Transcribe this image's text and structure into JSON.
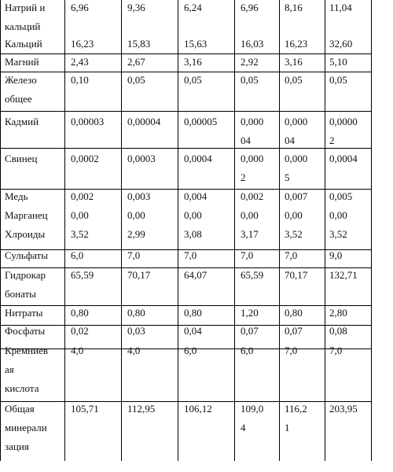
{
  "table": {
    "rows": [
      {
        "key": "sodium",
        "label_lines": [
          "Натрий и",
          "кальций"
        ],
        "cells": [
          [
            "6,96"
          ],
          [
            "9,36"
          ],
          [
            "6,24"
          ],
          [
            "6,96"
          ],
          [
            "8,16"
          ],
          [
            "11,04"
          ]
        ]
      },
      {
        "key": "calcium",
        "label_lines": [
          "Кальций"
        ],
        "cells": [
          [
            "16,23"
          ],
          [
            "15,83"
          ],
          [
            "15,63"
          ],
          [
            "16,03"
          ],
          [
            "16,23"
          ],
          [
            "32,60"
          ]
        ]
      },
      {
        "key": "magnesium",
        "label_lines": [
          "Магний"
        ],
        "cells": [
          [
            "2,43"
          ],
          [
            "2,67"
          ],
          [
            "3,16"
          ],
          [
            "2,92"
          ],
          [
            "3,16"
          ],
          [
            "5,10"
          ]
        ]
      },
      {
        "key": "iron",
        "label_lines": [
          "Железо",
          "общее"
        ],
        "cells": [
          [
            "0,10"
          ],
          [
            "0,05"
          ],
          [
            "0,05"
          ],
          [
            "0,05"
          ],
          [
            "0,05"
          ],
          [
            "0,05"
          ]
        ]
      },
      {
        "key": "cadmium",
        "label_lines": [
          "Кадмий"
        ],
        "cells": [
          [
            "0,00003"
          ],
          [
            "0,00004"
          ],
          [
            "0,00005"
          ],
          [
            "0,000",
            "04"
          ],
          [
            "0,000",
            "04"
          ],
          [
            "0,0000",
            "2"
          ]
        ]
      },
      {
        "key": "lead",
        "label_lines": [
          "Свинец"
        ],
        "cells": [
          [
            "0,0002"
          ],
          [
            "0,0003"
          ],
          [
            "0,0004"
          ],
          [
            "0,000",
            "2"
          ],
          [
            "0,000",
            "5"
          ],
          [
            "0,0004"
          ]
        ]
      },
      {
        "key": "copper",
        "label_lines": [
          "Медь"
        ],
        "cells": [
          [
            "0,002"
          ],
          [
            "0,003"
          ],
          [
            "0,004"
          ],
          [
            "0,002"
          ],
          [
            "0,007"
          ],
          [
            "0,005"
          ]
        ]
      },
      {
        "key": "manganese",
        "label_lines": [
          "Марганец"
        ],
        "cells": [
          [
            "0,00"
          ],
          [
            "0,00"
          ],
          [
            "0,00"
          ],
          [
            "0,00"
          ],
          [
            "0,00"
          ],
          [
            "0,00"
          ]
        ]
      },
      {
        "key": "chlorides",
        "label_lines": [
          "Хлроиды"
        ],
        "cells": [
          [
            "3,52"
          ],
          [
            "2,99"
          ],
          [
            "3,08"
          ],
          [
            "3,17"
          ],
          [
            "3,52"
          ],
          [
            "3,52"
          ]
        ]
      },
      {
        "key": "sulfates",
        "label_lines": [
          "Сульфаты"
        ],
        "cells": [
          [
            "6,0"
          ],
          [
            "7,0"
          ],
          [
            "7,0"
          ],
          [
            "7,0"
          ],
          [
            "7,0"
          ],
          [
            "9,0"
          ]
        ]
      },
      {
        "key": "hydrocarbonates",
        "label_lines": [
          "Гидрокар",
          "бонаты"
        ],
        "cells": [
          [
            "65,59"
          ],
          [
            "70,17"
          ],
          [
            "64,07"
          ],
          [
            "65,59"
          ],
          [
            "70,17"
          ],
          [
            "132,71"
          ]
        ]
      },
      {
        "key": "nitrates",
        "label_lines": [
          "Нитраты"
        ],
        "cells": [
          [
            "0,80"
          ],
          [
            "0,80"
          ],
          [
            "0,80"
          ],
          [
            "1,20"
          ],
          [
            "0,80"
          ],
          [
            "2,80"
          ]
        ]
      },
      {
        "key": "phosphates",
        "label_lines": [
          "Фосфаты"
        ],
        "cells": [
          [
            "0,02"
          ],
          [
            "0,03"
          ],
          [
            "0,04"
          ],
          [
            "0,07"
          ],
          [
            "0,07"
          ],
          [
            "0,08"
          ]
        ]
      },
      {
        "key": "silicic-acid",
        "label_lines": [
          "Кремниев",
          "ая",
          "кислота"
        ],
        "cells": [
          [
            "4,0"
          ],
          [
            "4,0"
          ],
          [
            "6,0"
          ],
          [
            "6,0"
          ],
          [
            "7,0"
          ],
          [
            "7,0"
          ]
        ]
      },
      {
        "key": "total-mineralization",
        "label_lines": [
          "Общая",
          "минерали",
          "зация"
        ],
        "cells": [
          [
            "105,71"
          ],
          [
            "112,95"
          ],
          [
            "106,12"
          ],
          [
            "109,0",
            "4"
          ],
          [
            "116,2",
            "1"
          ],
          [
            "203,95"
          ]
        ]
      }
    ]
  }
}
